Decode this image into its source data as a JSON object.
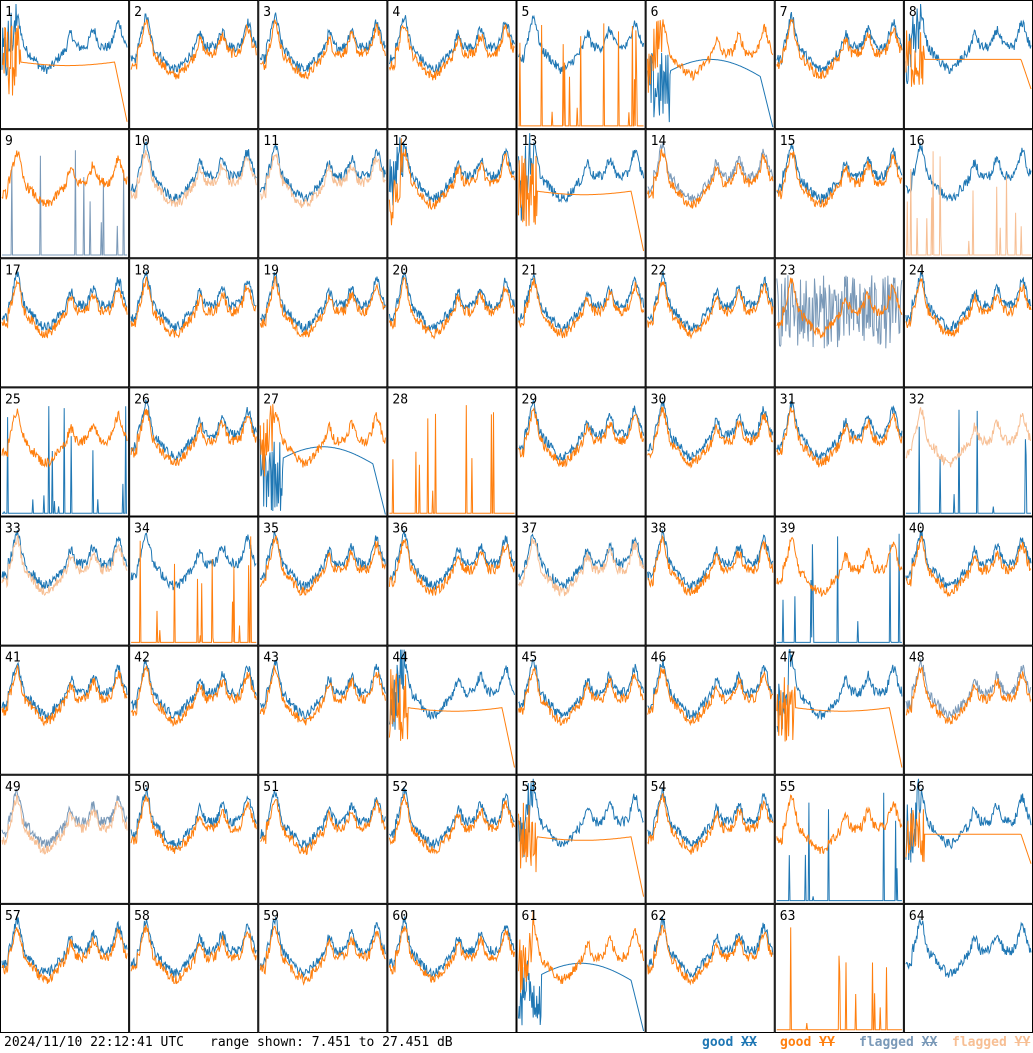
{
  "footer": {
    "timestamp": "2024/11/10 22:12:41 UTC",
    "range_text": "range shown: 7.451 to 27.451 dB"
  },
  "legend": [
    {
      "prefix": "good ",
      "pol": "XX",
      "color": "#1f77b4"
    },
    {
      "prefix": "good ",
      "pol": "YY",
      "color": "#ff7f0e"
    },
    {
      "prefix": "flagged ",
      "pol": "XX",
      "color": "#7a99b8"
    },
    {
      "prefix": "flagged ",
      "pol": "YY",
      "color": "#f7bf94"
    }
  ],
  "chart_data": {
    "type": "line",
    "layout": "8x8 small multiples",
    "range_db": [
      7.451,
      27.451
    ],
    "panels": [
      {
        "id": "1",
        "xx": "good",
        "yy": "good",
        "yyShape": "droop_right",
        "noisy": "left"
      },
      {
        "id": "2",
        "xx": "good",
        "yy": "good"
      },
      {
        "id": "3",
        "xx": "good",
        "yy": "good"
      },
      {
        "id": "4",
        "xx": "good",
        "yy": "good"
      },
      {
        "id": "5",
        "xx": "good",
        "yy": "spikes"
      },
      {
        "id": "6",
        "xx": "good",
        "yy": "good",
        "xxShape": "bump_drop",
        "noisy": "left"
      },
      {
        "id": "7",
        "xx": "good",
        "yy": "good"
      },
      {
        "id": "8",
        "xx": "good",
        "yy": "good",
        "yyShape": "flat_droop",
        "noisy": "left"
      },
      {
        "id": "9",
        "xx": "flagged_spikes",
        "yy": "good"
      },
      {
        "id": "10",
        "xx": "good",
        "yy": "flagged"
      },
      {
        "id": "11",
        "xx": "good",
        "yy": "flagged"
      },
      {
        "id": "12",
        "xx": "good",
        "yy": "good",
        "noisy": "left"
      },
      {
        "id": "13",
        "xx": "good",
        "yy": "good",
        "yyShape": "droop_right",
        "noisy": "left"
      },
      {
        "id": "14",
        "xx": "flagged",
        "yy": "good"
      },
      {
        "id": "15",
        "xx": "good",
        "yy": "good"
      },
      {
        "id": "16",
        "xx": "good",
        "yy": "flagged_spikes"
      },
      {
        "id": "17",
        "xx": "good",
        "yy": "good"
      },
      {
        "id": "18",
        "xx": "good",
        "yy": "good"
      },
      {
        "id": "19",
        "xx": "good",
        "yy": "good"
      },
      {
        "id": "20",
        "xx": "good",
        "yy": "good"
      },
      {
        "id": "21",
        "xx": "good",
        "yy": "good"
      },
      {
        "id": "22",
        "xx": "good",
        "yy": "good"
      },
      {
        "id": "23",
        "xx": "flagged_noise",
        "yy": "good"
      },
      {
        "id": "24",
        "xx": "good",
        "yy": "good"
      },
      {
        "id": "25",
        "xx": "spikes",
        "yy": "good"
      },
      {
        "id": "26",
        "xx": "good",
        "yy": "good"
      },
      {
        "id": "27",
        "xx": "good",
        "yy": "good",
        "xxShape": "bump_drop",
        "noisy": "left"
      },
      {
        "id": "28",
        "xx": "none",
        "yy": "spikes"
      },
      {
        "id": "29",
        "xx": "good",
        "yy": "good"
      },
      {
        "id": "30",
        "xx": "good",
        "yy": "good"
      },
      {
        "id": "31",
        "xx": "good",
        "yy": "good"
      },
      {
        "id": "32",
        "xx": "spikes",
        "yy": "flagged"
      },
      {
        "id": "33",
        "xx": "good",
        "yy": "flagged"
      },
      {
        "id": "34",
        "xx": "good",
        "yy": "spikes"
      },
      {
        "id": "35",
        "xx": "good",
        "yy": "good"
      },
      {
        "id": "36",
        "xx": "good",
        "yy": "good"
      },
      {
        "id": "37",
        "xx": "good",
        "yy": "flagged"
      },
      {
        "id": "38",
        "xx": "good",
        "yy": "good"
      },
      {
        "id": "39",
        "xx": "spikes",
        "yy": "good"
      },
      {
        "id": "40",
        "xx": "good",
        "yy": "good"
      },
      {
        "id": "41",
        "xx": "good",
        "yy": "good"
      },
      {
        "id": "42",
        "xx": "good",
        "yy": "good"
      },
      {
        "id": "43",
        "xx": "good",
        "yy": "good"
      },
      {
        "id": "44",
        "xx": "good",
        "yy": "good",
        "yyShape": "droop_right",
        "noisy": "left"
      },
      {
        "id": "45",
        "xx": "good",
        "yy": "good"
      },
      {
        "id": "46",
        "xx": "good",
        "yy": "good"
      },
      {
        "id": "47",
        "xx": "good",
        "yy": "good",
        "yyShape": "droop_right",
        "noisy": "left"
      },
      {
        "id": "48",
        "xx": "flagged",
        "yy": "good"
      },
      {
        "id": "49",
        "xx": "flagged",
        "yy": "flagged"
      },
      {
        "id": "50",
        "xx": "good",
        "yy": "good"
      },
      {
        "id": "51",
        "xx": "good",
        "yy": "good"
      },
      {
        "id": "52",
        "xx": "good",
        "yy": "good"
      },
      {
        "id": "53",
        "xx": "good",
        "yy": "good",
        "yyShape": "droop_right",
        "noisy": "left"
      },
      {
        "id": "54",
        "xx": "good",
        "yy": "good"
      },
      {
        "id": "55",
        "xx": "spikes",
        "yy": "good"
      },
      {
        "id": "56",
        "xx": "good",
        "yy": "good",
        "yyShape": "flat_droop",
        "noisy": "left"
      },
      {
        "id": "57",
        "xx": "good",
        "yy": "good"
      },
      {
        "id": "58",
        "xx": "good",
        "yy": "good"
      },
      {
        "id": "59",
        "xx": "good",
        "yy": "good"
      },
      {
        "id": "60",
        "xx": "good",
        "yy": "good"
      },
      {
        "id": "61",
        "xx": "good",
        "yy": "good",
        "xxShape": "bump_drop",
        "noisy": "left"
      },
      {
        "id": "62",
        "xx": "good",
        "yy": "good"
      },
      {
        "id": "63",
        "xx": "none",
        "yy": "spikes"
      },
      {
        "id": "64",
        "xx": "good",
        "yy": "none"
      }
    ]
  }
}
